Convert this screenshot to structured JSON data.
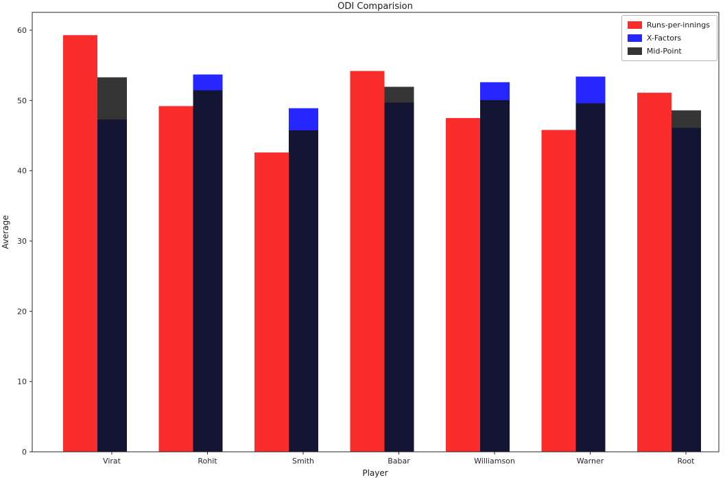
{
  "chart_data": {
    "type": "bar",
    "title": "ODI Comparision",
    "xlabel": "Player",
    "ylabel": "Average",
    "ylim": [
      0,
      60
    ],
    "yticks": [
      0,
      10,
      20,
      30,
      40,
      50,
      60
    ],
    "grid": false,
    "legend_position": "upper right",
    "bar_style": "Runs-per-innings offset left; X-Factors and Mid-Point drawn overlapping at same x with transparency",
    "categories": [
      "Virat",
      "Rohit",
      "Smith",
      "Babar",
      "Williamson",
      "Warner",
      "Root"
    ],
    "series": [
      {
        "name": "Runs-per-innings",
        "color": "#fb2c2c",
        "alpha": 1,
        "values": [
          59.3,
          49.2,
          42.6,
          54.2,
          47.5,
          45.8,
          51.1
        ]
      },
      {
        "name": "X-Factors",
        "color": "#0000ff",
        "alpha": 0.85,
        "values": [
          47.3,
          53.7,
          48.9,
          49.7,
          52.6,
          53.4,
          46.1
        ]
      },
      {
        "name": "Mid-Point",
        "color": "#121212",
        "alpha": 0.85,
        "values": [
          53.3,
          51.45,
          45.75,
          51.95,
          50.05,
          49.6,
          48.6
        ]
      }
    ],
    "colors": {
      "axis": "#262626",
      "text": "#1a1a1a",
      "background": "#ffffff"
    }
  }
}
